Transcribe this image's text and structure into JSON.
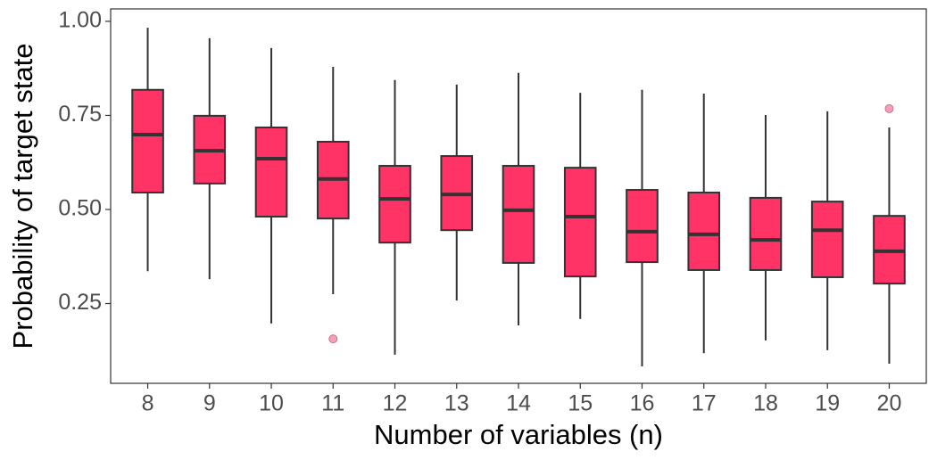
{
  "chart_data": {
    "type": "box",
    "x_label": "Number of variables (n)",
    "y_label": "Probability of target state",
    "categories": [
      "8",
      "9",
      "10",
      "11",
      "12",
      "13",
      "14",
      "15",
      "16",
      "17",
      "18",
      "19",
      "20"
    ],
    "boxes": [
      {
        "low": 0.336,
        "q1": 0.545,
        "median": 0.699,
        "q3": 0.818,
        "high": 0.983,
        "outliers": []
      },
      {
        "low": 0.315,
        "q1": 0.569,
        "median": 0.656,
        "q3": 0.749,
        "high": 0.955,
        "outliers": []
      },
      {
        "low": 0.197,
        "q1": 0.481,
        "median": 0.635,
        "q3": 0.718,
        "high": 0.929,
        "outliers": []
      },
      {
        "low": 0.275,
        "q1": 0.476,
        "median": 0.581,
        "q3": 0.68,
        "high": 0.879,
        "outliers": [
          0.156
        ]
      },
      {
        "low": 0.114,
        "q1": 0.412,
        "median": 0.528,
        "q3": 0.616,
        "high": 0.844,
        "outliers": []
      },
      {
        "low": 0.258,
        "q1": 0.445,
        "median": 0.54,
        "q3": 0.642,
        "high": 0.832,
        "outliers": []
      },
      {
        "low": 0.192,
        "q1": 0.358,
        "median": 0.498,
        "q3": 0.616,
        "high": 0.863,
        "outliers": []
      },
      {
        "low": 0.209,
        "q1": 0.322,
        "median": 0.481,
        "q3": 0.611,
        "high": 0.81,
        "outliers": []
      },
      {
        "low": 0.083,
        "q1": 0.36,
        "median": 0.441,
        "q3": 0.552,
        "high": 0.818,
        "outliers": []
      },
      {
        "low": 0.118,
        "q1": 0.339,
        "median": 0.434,
        "q3": 0.545,
        "high": 0.808,
        "outliers": []
      },
      {
        "low": 0.152,
        "q1": 0.339,
        "median": 0.419,
        "q3": 0.531,
        "high": 0.751,
        "outliers": []
      },
      {
        "low": 0.126,
        "q1": 0.32,
        "median": 0.445,
        "q3": 0.521,
        "high": 0.761,
        "outliers": []
      },
      {
        "low": 0.09,
        "q1": 0.303,
        "median": 0.389,
        "q3": 0.483,
        "high": 0.718,
        "outliers": [
          0.768
        ]
      }
    ],
    "color": "#ff3366",
    "outline_color": "#333333",
    "outlier_color": "#f4a0b6",
    "ylim": [
      0.038,
      1.033
    ],
    "yticks": [
      0.25,
      {
        "value": 0.5,
        "label": "0.50"
      },
      0.75,
      {
        "value": 1,
        "label": "1.00"
      }
    ],
    "grid": false
  }
}
